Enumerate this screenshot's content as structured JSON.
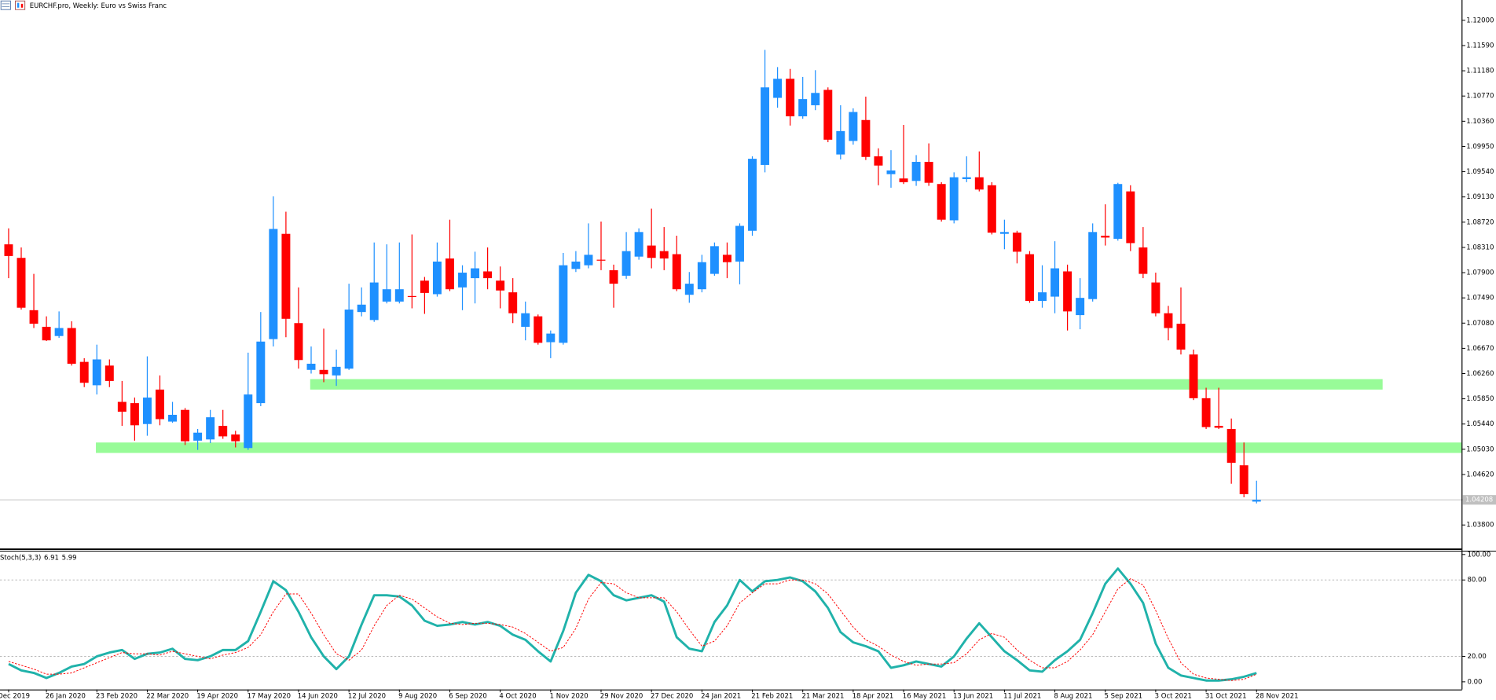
{
  "chart_data": {
    "type": "candlestick",
    "title": "EURCHF.pro, Weekly:  Euro vs Swiss Franc",
    "categories": [
      "9 Dec 2019",
      null,
      null,
      "26 Jan 2020",
      null,
      null,
      null,
      "23 Feb 2020",
      null,
      null,
      null,
      "22 Mar 2020",
      null,
      null,
      null,
      "19 Apr 2020",
      null,
      null,
      null,
      "17 May 2020",
      null,
      null,
      null,
      "14 Jun 2020",
      null,
      null,
      null,
      "12 Jul 2020",
      null,
      null,
      null,
      "9 Aug 2020",
      null,
      null,
      null,
      "6 Sep 2020",
      null,
      null,
      null,
      "4 Oct 2020",
      null,
      null,
      null,
      "1 Nov 2020",
      null,
      null,
      null,
      "29 Nov 2020",
      null,
      null,
      null,
      "27 Dec 2020",
      null,
      null,
      null,
      "24 Jan 2021",
      null,
      null,
      null,
      "21 Feb 2021",
      null,
      null,
      null,
      "21 Mar 2021",
      null,
      null,
      null,
      "18 Apr 2021",
      null,
      null,
      null,
      "16 May 2021",
      null,
      null,
      null,
      "13 Jun 2021",
      null,
      null,
      null,
      "11 Jul 2021",
      null,
      null,
      null,
      "8 Aug 2021",
      null,
      null,
      null,
      "5 Sep 2021",
      null,
      null,
      null,
      "3 Oct 2021",
      null,
      null,
      null,
      "31 Oct 2021",
      null,
      null,
      null,
      "28 Nov 2021"
    ],
    "open": [
      1.0836,
      1.0814,
      1.0729,
      1.0702,
      1.0687,
      1.07,
      1.0645,
      1.0607,
      1.0639,
      1.058,
      1.0578,
      1.0544,
      1.06,
      1.0548,
      1.0567,
      1.0517,
      1.0519,
      1.0541,
      1.0527,
      1.0505,
      1.0578,
      1.0682,
      1.0853,
      1.0708,
      1.0632,
      1.0632,
      1.0623,
      1.0634,
      1.0726,
      1.0713,
      1.0743,
      1.0743,
      1.0752,
      1.0777,
      1.0755,
      1.0813,
      1.0766,
      1.0781,
      1.0792,
      1.0777,
      1.0758,
      1.0702,
      1.0719,
      1.0677,
      1.0676,
      1.0796,
      1.0802,
      1.0811,
      1.0794,
      1.0785,
      1.0816,
      1.0834,
      1.0825,
      1.082,
      1.0754,
      1.0763,
      1.0788,
      1.0819,
      1.0808,
      1.0858,
      1.0965,
      1.1074,
      1.1105,
      1.1044,
      1.1062,
      1.1087,
      1.0982,
      1.1004,
      1.1038,
      1.0979,
      1.095,
      1.0943,
      1.0939,
      1.097,
      1.0934,
      1.0875,
      1.0942,
      1.0945,
      1.0932,
      1.0853,
      1.0855,
      1.082,
      1.0744,
      1.0751,
      1.0792,
      1.0721,
      1.0747,
      1.085,
      1.0845,
      1.0922,
      1.0831,
      1.0774,
      1.0724,
      1.0707,
      1.0657,
      1.0586,
      1.0541,
      1.0536,
      1.0477,
      1.0418
    ],
    "high": [
      1.0862,
      1.0831,
      1.0788,
      1.0719,
      1.0727,
      1.0711,
      1.0651,
      1.0673,
      1.0649,
      1.0614,
      1.0587,
      1.0654,
      1.0623,
      1.058,
      1.057,
      1.0536,
      1.0567,
      1.0567,
      1.0533,
      1.066,
      1.0726,
      1.0914,
      1.0889,
      1.0766,
      1.067,
      1.0699,
      1.0665,
      1.0772,
      1.0766,
      1.0839,
      1.0836,
      1.0839,
      1.0852,
      1.0783,
      1.0839,
      1.0876,
      1.0802,
      1.0824,
      1.0831,
      1.08,
      1.0781,
      1.0743,
      1.0722,
      1.0696,
      1.0822,
      1.0825,
      1.087,
      1.0873,
      1.0803,
      1.0856,
      1.0862,
      1.0894,
      1.0864,
      1.085,
      1.0791,
      1.0819,
      1.0839,
      1.0839,
      1.087,
      1.0979,
      1.1152,
      1.1124,
      1.1121,
      1.1108,
      1.1119,
      1.1091,
      1.1062,
      1.1057,
      1.1076,
      1.0992,
      1.0989,
      1.103,
      1.0981,
      1.1,
      1.0937,
      1.0953,
      1.0979,
      1.0987,
      1.0937,
      1.0876,
      1.0858,
      1.0825,
      1.0802,
      1.0841,
      1.0803,
      1.0781,
      1.087,
      1.0901,
      1.0936,
      1.0932,
      1.0864,
      1.079,
      1.0736,
      1.0766,
      1.0665,
      1.0603,
      1.0603,
      1.0553,
      1.0514,
      1.0452
    ],
    "low": [
      1.0781,
      1.073,
      1.07,
      1.0679,
      1.0684,
      1.0639,
      1.0604,
      1.0592,
      1.0604,
      1.0541,
      1.0517,
      1.0525,
      1.0542,
      1.0546,
      1.051,
      1.0502,
      1.0513,
      1.052,
      1.0506,
      1.0502,
      1.0573,
      1.067,
      1.0685,
      1.0634,
      1.0626,
      1.0612,
      1.0606,
      1.0632,
      1.0719,
      1.071,
      1.074,
      1.074,
      1.0732,
      1.0723,
      1.0751,
      1.076,
      1.0729,
      1.074,
      1.0763,
      1.0732,
      1.0708,
      1.068,
      1.0673,
      1.0651,
      1.0673,
      1.0791,
      1.0797,
      1.0794,
      1.0733,
      1.078,
      1.0811,
      1.0797,
      1.0794,
      1.076,
      1.0741,
      1.0758,
      1.0785,
      1.0781,
      1.0771,
      1.085,
      1.0953,
      1.1058,
      1.1029,
      1.104,
      1.1054,
      1.1002,
      1.0974,
      1.0998,
      1.0973,
      1.0932,
      1.0928,
      1.0934,
      1.0931,
      1.0931,
      1.0873,
      1.087,
      1.0937,
      1.0922,
      1.0852,
      1.0828,
      1.0805,
      1.0741,
      1.0733,
      1.0724,
      1.0696,
      1.0698,
      1.0743,
      1.0834,
      1.0842,
      1.0825,
      1.0781,
      1.0719,
      1.068,
      1.0657,
      1.0583,
      1.0536,
      1.0536,
      1.0447,
      1.0425,
      1.0415
    ],
    "close": [
      1.0817,
      1.0733,
      1.0707,
      1.068,
      1.07,
      1.0642,
      1.0611,
      1.0649,
      1.0614,
      1.0564,
      1.0542,
      1.0587,
      1.0552,
      1.0559,
      1.0516,
      1.053,
      1.0555,
      1.0524,
      1.0516,
      1.0592,
      1.0678,
      1.0861,
      1.0715,
      1.0648,
      1.0642,
      1.0625,
      1.0637,
      1.073,
      1.0738,
      1.0774,
      1.0763,
      1.0763,
      1.0751,
      1.0757,
      1.0808,
      1.0763,
      1.079,
      1.0797,
      1.0781,
      1.0761,
      1.0724,
      1.0724,
      1.0676,
      1.0691,
      1.0802,
      1.0808,
      1.0819,
      1.081,
      1.0772,
      1.0825,
      1.0856,
      1.0814,
      1.0813,
      1.0763,
      1.0772,
      1.0807,
      1.0833,
      1.0807,
      1.0866,
      1.0975,
      1.1091,
      1.1105,
      1.1044,
      1.1072,
      1.1082,
      1.1006,
      1.102,
      1.1051,
      1.0978,
      1.0964,
      1.0956,
      1.0937,
      1.097,
      1.0936,
      1.0876,
      1.0945,
      1.0945,
      1.0925,
      1.0855,
      1.0856,
      1.0824,
      1.0744,
      1.0758,
      1.0797,
      1.0727,
      1.0749,
      1.0856,
      1.0847,
      1.0934,
      1.0838,
      1.0788,
      1.0724,
      1.07,
      1.0665,
      1.0586,
      1.0539,
      1.0538,
      1.0481,
      1.043,
      1.04208
    ],
    "up_color": "#1e90ff",
    "down_color": "#ff0000",
    "ylim": [
      1.0343,
      1.1233
    ],
    "yticks": [
      {
        "value": 1.12,
        "label": "1.12000"
      },
      {
        "value": 1.1159,
        "label": "1.11590"
      },
      {
        "value": 1.1118,
        "label": "1.11180"
      },
      {
        "value": 1.1077,
        "label": "1.10770"
      },
      {
        "value": 1.1036,
        "label": "1.10360"
      },
      {
        "value": 1.0995,
        "label": "1.09950"
      },
      {
        "value": 1.0954,
        "label": "1.09540"
      },
      {
        "value": 1.0913,
        "label": "1.09130"
      },
      {
        "value": 1.0872,
        "label": "1.08720"
      },
      {
        "value": 1.0831,
        "label": "1.08310"
      },
      {
        "value": 1.079,
        "label": "1.07900"
      },
      {
        "value": 1.0749,
        "label": "1.07490"
      },
      {
        "value": 1.0708,
        "label": "1.07080"
      },
      {
        "value": 1.0667,
        "label": "1.06670"
      },
      {
        "value": 1.0626,
        "label": "1.06260"
      },
      {
        "value": 1.0585,
        "label": "1.05850"
      },
      {
        "value": 1.0544,
        "label": "1.05440"
      },
      {
        "value": 1.0503,
        "label": "1.05030"
      },
      {
        "value": 1.0462,
        "label": "1.04620"
      },
      {
        "value": 1.0421,
        "label": "1.04210"
      },
      {
        "value": 1.038,
        "label": "1.03800"
      }
    ],
    "zones": [
      {
        "low": 1.06,
        "high": 1.0617,
        "start": 24,
        "end": 109
      },
      {
        "low": 1.0497,
        "high": 1.0514,
        "start": 7,
        "end": 117
      }
    ],
    "zone_color": "#98fb98",
    "indicator": {
      "type": "line",
      "name": "Stoch(5,3,3)",
      "series": [
        {
          "color": "#20b2aa",
          "values": [
            14,
            9,
            7,
            3,
            7,
            12,
            14,
            20,
            23,
            25,
            18,
            22,
            23,
            26,
            18,
            17,
            20,
            25,
            25,
            32,
            55,
            79,
            72,
            55,
            35,
            20,
            10,
            20,
            45,
            68,
            68,
            67,
            60,
            48,
            44,
            45,
            47,
            45,
            47,
            44,
            37,
            33,
            24,
            16,
            40,
            70,
            84,
            79,
            68,
            64,
            66,
            68,
            63,
            35,
            26,
            24,
            47,
            60,
            80,
            71,
            79,
            80,
            82,
            79,
            71,
            58,
            39,
            31,
            28,
            24,
            11,
            13,
            16,
            14,
            12,
            20,
            34,
            46,
            35,
            24,
            17,
            9,
            8,
            17,
            24,
            33,
            54,
            77,
            89,
            77,
            62,
            30,
            11,
            5,
            3,
            1,
            1,
            2,
            4,
            6.91
          ]
        },
        {
          "color": "#ff0000",
          "dashed": true,
          "values": [
            16,
            13,
            10,
            6,
            6,
            7,
            11,
            15,
            19,
            23,
            22,
            22,
            21,
            24,
            22,
            20,
            18,
            21,
            23,
            27,
            37,
            55,
            69,
            69,
            54,
            37,
            22,
            17,
            25,
            44,
            60,
            68,
            65,
            58,
            51,
            46,
            45,
            46,
            46,
            45,
            43,
            38,
            31,
            24,
            27,
            42,
            65,
            78,
            77,
            70,
            66,
            66,
            66,
            55,
            41,
            28,
            32,
            44,
            62,
            70,
            77,
            77,
            80,
            80,
            77,
            69,
            56,
            43,
            33,
            28,
            21,
            16,
            13,
            14,
            14,
            15,
            22,
            33,
            38,
            35,
            25,
            17,
            11,
            11,
            16,
            25,
            37,
            55,
            73,
            81,
            76,
            56,
            34,
            15,
            6,
            3,
            2,
            1,
            2,
            5.99
          ]
        }
      ],
      "ylim": [
        -6,
        102.3
      ],
      "yticks": [
        {
          "value": 100,
          "label": "100.00"
        },
        {
          "value": 80,
          "label": "80.00"
        },
        {
          "value": 20,
          "label": "20.00"
        },
        {
          "value": 0,
          "label": "0.00"
        }
      ],
      "levels": [
        80,
        20
      ]
    }
  }
}
